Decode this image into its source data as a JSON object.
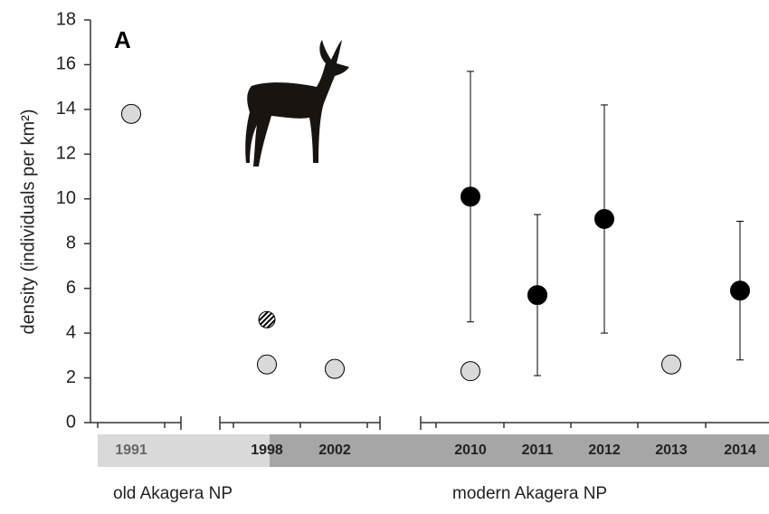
{
  "chart_data": {
    "type": "scatter",
    "panel_label": "A",
    "y_label": "density (individuals per km²)",
    "categories": [
      "1991",
      "1998",
      "2002",
      "2010",
      "2011",
      "2012",
      "2013",
      "2014"
    ],
    "group_labels": [
      "old Akagera NP",
      "modern Akagera NP"
    ],
    "ylim": [
      0,
      18
    ],
    "yticks": [
      0,
      2,
      4,
      6,
      8,
      10,
      12,
      14,
      16,
      18
    ],
    "series": [
      {
        "color": "#d9d9d9",
        "values": [
          13.8,
          2.6,
          2.4,
          2.3,
          null,
          null,
          2.6,
          null
        ]
      },
      {
        "color": "hatched",
        "values": [
          null,
          4.6,
          null,
          null,
          null,
          null,
          null,
          null
        ]
      },
      {
        "color": "#000000",
        "values": [
          null,
          null,
          null,
          10.1,
          5.7,
          9.1,
          null,
          5.9
        ],
        "lower": [
          null,
          null,
          null,
          4.5,
          2.1,
          4.0,
          null,
          2.8
        ],
        "upper": [
          null,
          null,
          null,
          15.7,
          9.3,
          14.2,
          null,
          9.0
        ]
      }
    ]
  }
}
